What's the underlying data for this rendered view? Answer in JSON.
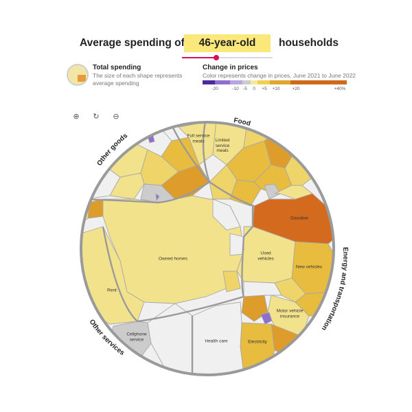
{
  "header": {
    "title_prefix": "Average spending of",
    "age_value": "46-year-old",
    "title_suffix": "households"
  },
  "age_slider": {
    "fraction": 0.38
  },
  "legend_total": {
    "title": "Total spending",
    "description": "The size of each shape represents average spending"
  },
  "legend_change": {
    "title": "Change in prices",
    "description": "Color represents change in prices, June 2021 to June 2022",
    "ticks": [
      "-20",
      "-10",
      "-5",
      "0",
      "+5",
      "+10",
      "+20",
      "+40%"
    ],
    "colors": [
      "#4a2a9c",
      "#8e6fd0",
      "#b8a6e0",
      "#cccccc",
      "#f6ea9a",
      "#f0cf52",
      "#e0a72e",
      "#cd6a1c"
    ]
  },
  "zoom_controls": {
    "zoom_in": "zoom-in-icon",
    "reset": "reset-icon",
    "zoom_out": "zoom-out-icon"
  },
  "categories": {
    "food": "Food",
    "other_goods": "Other goods",
    "energy_transport": "Energy and transportation",
    "other_services": "Other services"
  },
  "regions": {
    "full_service": "Full service\nmeals",
    "limited_service": "Limited\nservice\nmeals",
    "gasoline": "Gasoline",
    "owned_homes": "Owned homes",
    "rent": "Rent",
    "used_vehicles": "Used\nvehicles",
    "new_vehicles": "New vehicles",
    "motor_insurance": "Motor vehicle\ninsurance",
    "electricity": "Electricity",
    "health_care": "Health care",
    "cellphone": "Cellphone\nservice"
  },
  "colors": {
    "pale": "#f3e28c",
    "light": "#efd46a",
    "mid": "#e8bc3e",
    "dark": "#de9c2b",
    "gasoline": "#d46a1e",
    "gray": "#efefef",
    "midgray": "#cccccc",
    "purple": "#8e6fd0",
    "outline": "#9a9a9a"
  }
}
